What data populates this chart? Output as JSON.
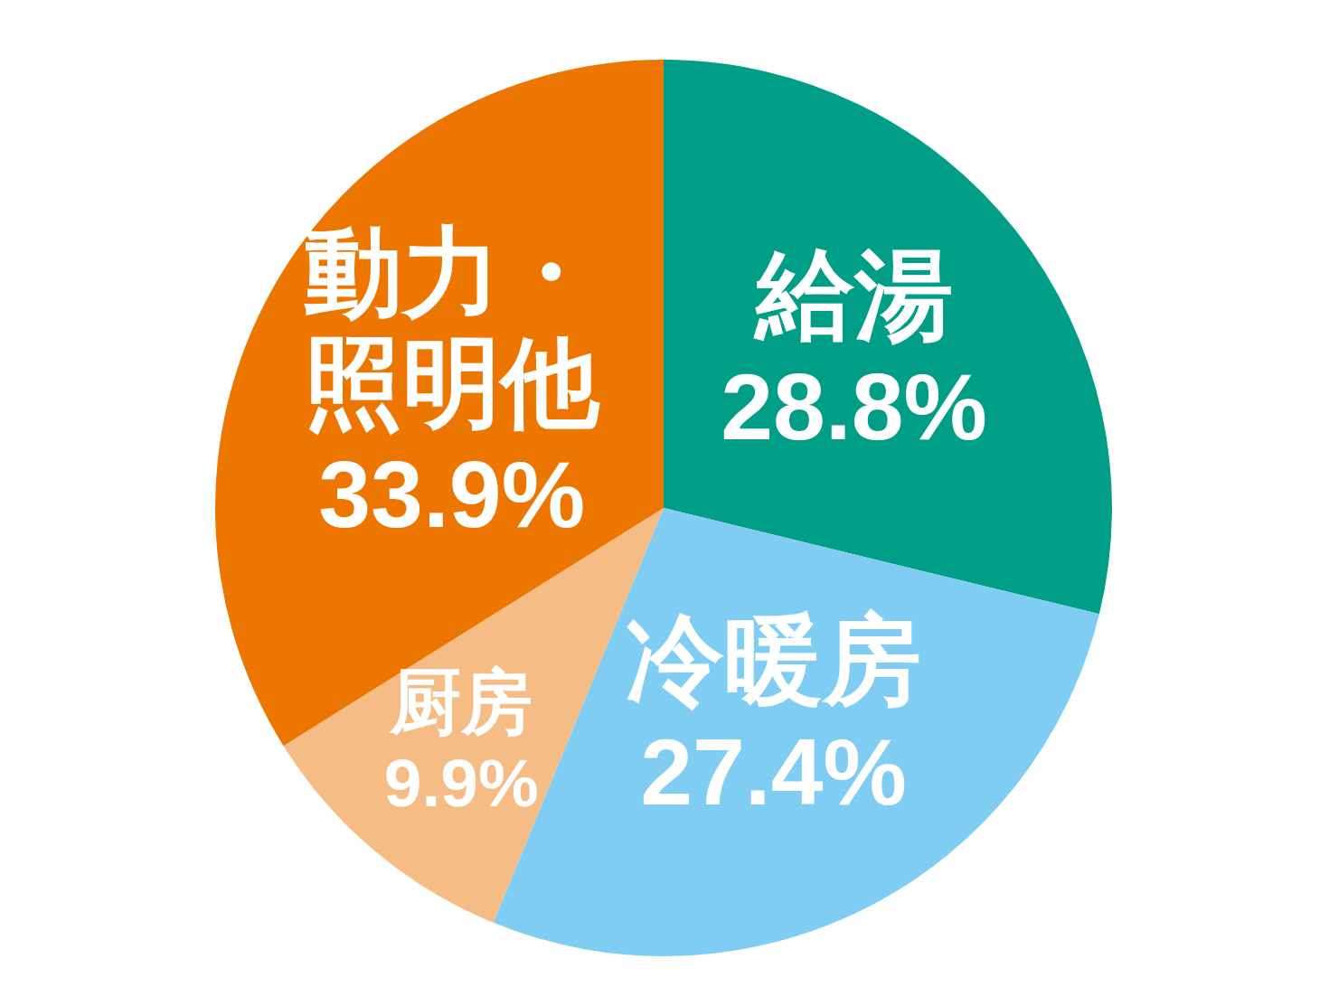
{
  "chart_data": {
    "type": "pie",
    "categories": [
      "給湯",
      "冷暖房",
      "厨房",
      "動力・照明他"
    ],
    "values": [
      28.8,
      27.4,
      9.9,
      33.9
    ],
    "colors": [
      "#009e87",
      "#7fcdf2",
      "#f5bd85",
      "#ec7600"
    ],
    "value_labels": [
      "28.8%",
      "27.4%",
      "9.9%",
      "33.9%"
    ]
  }
}
